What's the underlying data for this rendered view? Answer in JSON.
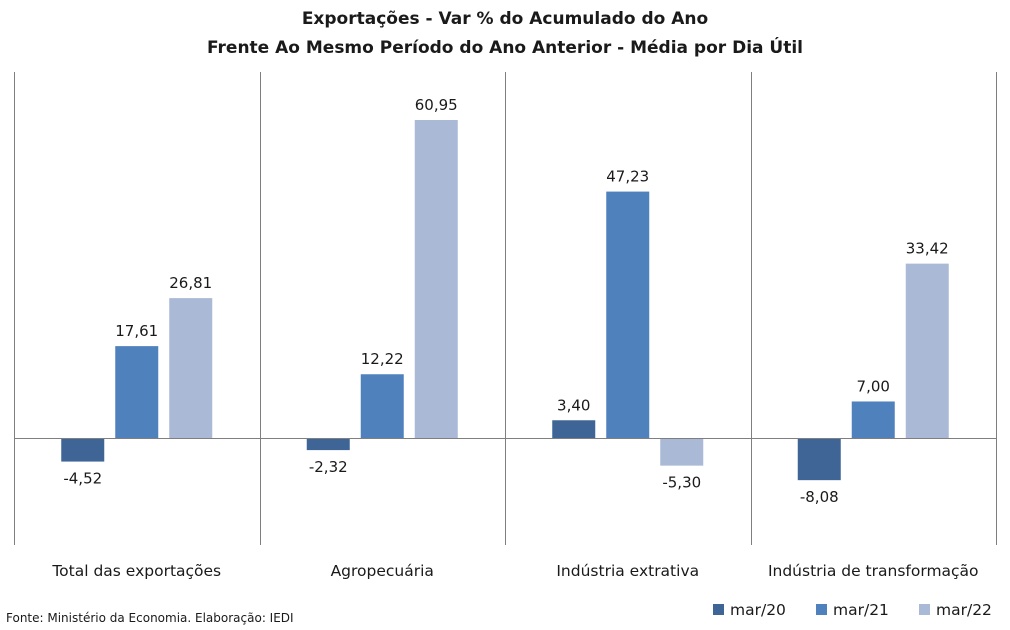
{
  "chart_data": {
    "type": "bar",
    "title": "Exportações - Var % do Acumulado do Ano",
    "subtitle": "Frente Ao Mesmo Período do Ano Anterior - Média por Dia Útil",
    "categories": [
      "Total das exportações",
      "Agropecuária",
      "Indústria extrativa",
      "Indústria de transformação"
    ],
    "series": [
      {
        "name": "mar/20",
        "color": "#3f6597",
        "values": [
          -4.52,
          -2.32,
          3.4,
          -8.08
        ],
        "labels": [
          "-4,52",
          "-2,32",
          "3,40",
          "-8,08"
        ]
      },
      {
        "name": "mar/21",
        "color": "#4f81bd",
        "values": [
          17.61,
          12.22,
          47.23,
          7.0
        ],
        "labels": [
          "17,61",
          "12,22",
          "47,23",
          "7,00"
        ]
      },
      {
        "name": "mar/22",
        "color": "#a9b9d6",
        "values": [
          26.81,
          60.95,
          -5.3,
          33.42
        ],
        "labels": [
          "26,81",
          "60,95",
          "-5,30",
          "33,42"
        ]
      }
    ],
    "ylim": [
      -19,
      70
    ],
    "grid": false,
    "category_separators": true,
    "legend_position": "bottom-right",
    "source": "Fonte: Ministério da Economia. Elaboração: IEDI"
  }
}
